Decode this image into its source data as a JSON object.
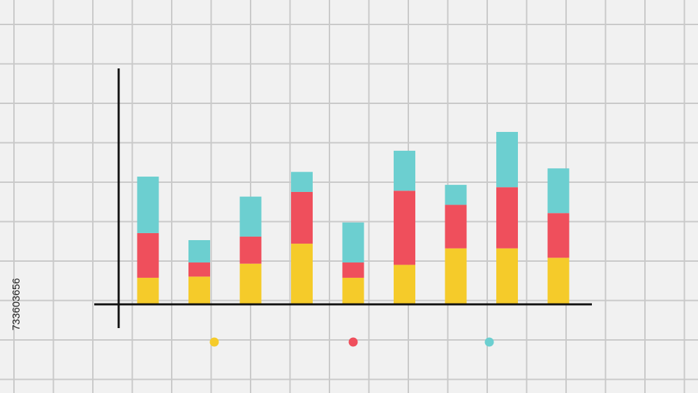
{
  "stock_id": "733603656",
  "chart_data": {
    "type": "stacked_bar",
    "categories": [
      null,
      null,
      null,
      null,
      null,
      null,
      null,
      null,
      null
    ],
    "ylim": [
      0,
      100
    ],
    "series": [
      {
        "color": "#f5cb2a",
        "values": [
          11,
          11.5,
          17,
          25.5,
          11,
          16.5,
          23.5,
          23.5,
          19.5
        ]
      },
      {
        "color": "#ef4f5c",
        "values": [
          19,
          6,
          11.5,
          22,
          6.5,
          31.5,
          18.5,
          26,
          19
        ]
      },
      {
        "color": "#6ccfd0",
        "values": [
          24,
          9.5,
          17,
          8.5,
          17,
          17,
          8.5,
          23.5,
          19
        ]
      }
    ]
  }
}
